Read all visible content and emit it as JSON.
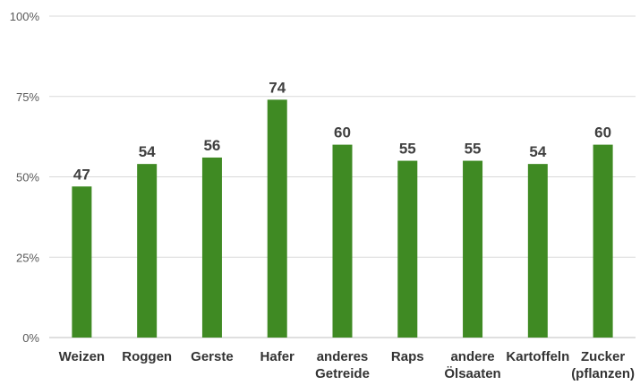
{
  "chart_data": {
    "type": "bar",
    "categories": [
      [
        "Weizen"
      ],
      [
        "Roggen"
      ],
      [
        "Gerste"
      ],
      [
        "Hafer"
      ],
      [
        "anderes",
        "Getreide"
      ],
      [
        "Raps"
      ],
      [
        "andere",
        "Ölsaaten"
      ],
      [
        "Kartoffeln"
      ],
      [
        "Zucker",
        "(pflanzen)"
      ]
    ],
    "values": [
      47,
      54,
      56,
      74,
      60,
      55,
      55,
      54,
      60
    ],
    "data_labels": [
      "47",
      "54",
      "56",
      "74",
      "60",
      "55",
      "55",
      "54",
      "60"
    ],
    "y_ticks": [
      "0%",
      "25%",
      "50%",
      "75%",
      "100%"
    ],
    "ylim": [
      0,
      100
    ],
    "grid": true,
    "colors": {
      "bar": "#3F8A23",
      "grid": "#D9D9D9",
      "axis": "#BFBFBF"
    }
  }
}
